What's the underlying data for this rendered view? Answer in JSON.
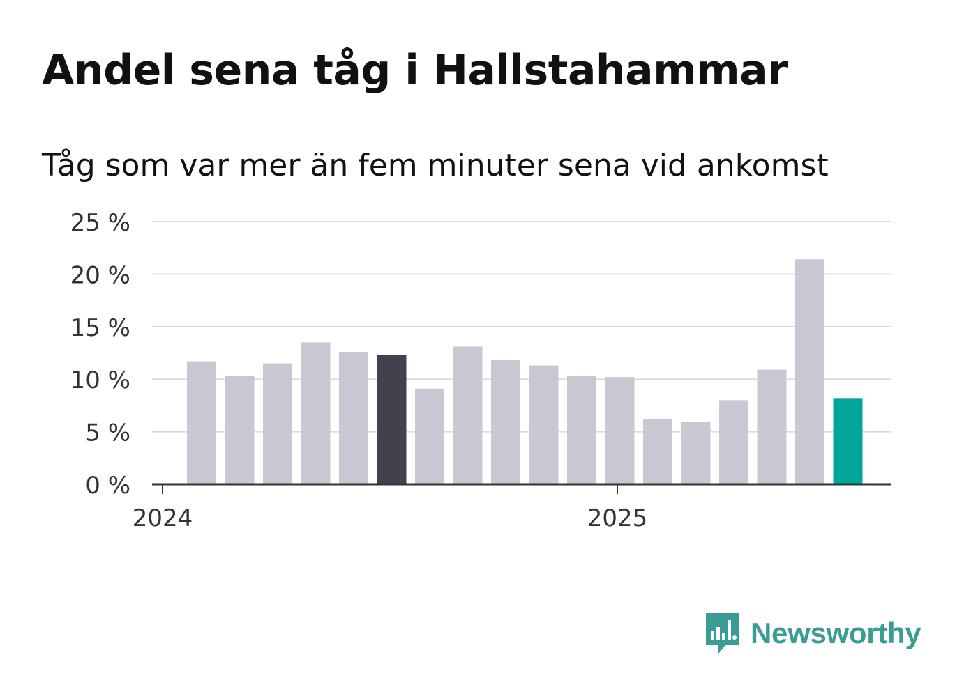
{
  "title": "Andel sena tåg i Hallstahammar",
  "subtitle": "Tåg som var mer än fem minuter sena vid ankomst",
  "brand": {
    "name": "Newsworthy",
    "color": "#3a9d95",
    "icon": "newsworthy-logo-icon"
  },
  "chart_data": {
    "type": "bar",
    "title": "Andel sena tåg i Hallstahammar",
    "subtitle": "Tåg som var mer än fem minuter sena vid ankomst",
    "y_ticks": [
      "0 %",
      "5 %",
      "10 %",
      "15 %",
      "20 %",
      "25 %"
    ],
    "ylim": [
      0,
      25
    ],
    "x_tick_labels": [
      "2024",
      "2025"
    ],
    "grid": true,
    "categories": [
      "2024-01",
      "2024-02",
      "2024-03",
      "2024-04",
      "2024-05",
      "2024-06",
      "2024-07",
      "2024-08",
      "2024-09",
      "2024-10",
      "2024-11",
      "2024-12",
      "2025-01",
      "2025-02",
      "2025-03",
      "2025-04",
      "2025-05",
      "2025-06"
    ],
    "values": [
      11.7,
      10.3,
      11.5,
      13.5,
      12.6,
      12.3,
      9.1,
      13.1,
      11.8,
      11.3,
      10.3,
      10.2,
      6.2,
      5.9,
      8.0,
      10.9,
      21.4,
      8.2
    ],
    "colors": {
      "default": "#c8c7d2",
      "highlight_dark": "#42414d",
      "highlight_latest": "#00a59b"
    },
    "bar_colors": [
      "default",
      "default",
      "default",
      "default",
      "default",
      "highlight_dark",
      "default",
      "default",
      "default",
      "default",
      "default",
      "default",
      "default",
      "default",
      "default",
      "default",
      "default",
      "highlight_latest"
    ]
  }
}
